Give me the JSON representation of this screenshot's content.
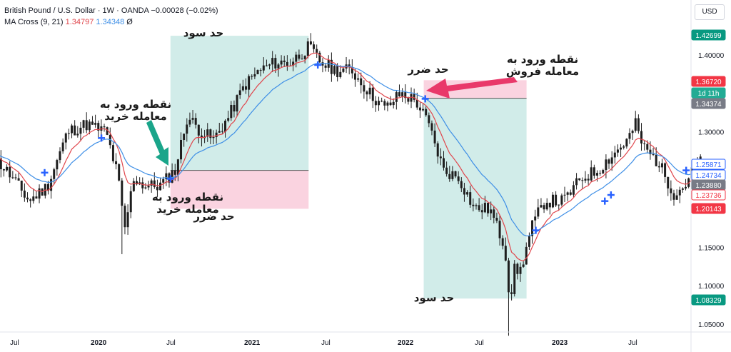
{
  "header": {
    "symbol": "British Pound / U.S. Dollar · 1W · OANDA",
    "change": "−0.00028 (−0.02%)",
    "indicator_name": "MA Cross (9, 21)",
    "ma_fast_value": "1.34797",
    "ma_slow_value": "1.34348",
    "visibility_icon": "Ø"
  },
  "currency_button": "USD",
  "colors": {
    "fast_ma": "#e0454b",
    "slow_ma": "#3d8ee6",
    "bull": "#26a69a",
    "bear": "#ef5350",
    "tp_zone": "#b2dfdb",
    "sl_zone": "#f8bbd0",
    "arrow_green": "#1aa58a",
    "arrow_red": "#e9386a",
    "cross_marker": "#2962ff"
  },
  "annotations": {
    "buy_tp_label": "حد سود",
    "buy_entry_upper": "نقطه ورود به\nمعامله خرید",
    "buy_entry_lower": "نقطه ورود به\nمعامله خرید",
    "buy_sl_label": "حد ضرر",
    "sell_entry": "نقطه ورود به\nمعامله فروش",
    "sell_sl_label": "حد ضرر",
    "sell_tp_label": "حد سود"
  },
  "chart_data": {
    "type": "candlestick",
    "x_tick_labels": [
      "Jul",
      "2020",
      "Jul",
      "2021",
      "Jul",
      "2022",
      "Jul",
      "2023",
      "Jul"
    ],
    "y_tick_labels": [
      "1.05000",
      "1.10000",
      "1.15000",
      "1.30000",
      "1.40000"
    ],
    "ylim": [
      1.033,
      1.445
    ],
    "price_badges": [
      {
        "value": "1.42699",
        "color": "#089981"
      },
      {
        "value": "1.36720",
        "color": "#f23645"
      },
      {
        "value": "1d 11h",
        "color": "#22ab94"
      },
      {
        "value": "1.34374",
        "color": "#787b86"
      },
      {
        "value": "1.25871",
        "color": "#2962ff",
        "outline": true
      },
      {
        "value": "1.24734",
        "color": "#2962ff",
        "outline": true
      },
      {
        "value": "1.23880",
        "color": "#787b86"
      },
      {
        "value": "1.23736",
        "color": "#f23645",
        "outline": true
      },
      {
        "value": "1.20143",
        "color": "#f23645"
      },
      {
        "value": "1.08329",
        "color": "#089981"
      }
    ],
    "price_path": [
      [
        2019.35,
        1.27
      ],
      [
        2019.45,
        1.25
      ],
      [
        2019.6,
        1.21
      ],
      [
        2019.72,
        1.23
      ],
      [
        2019.85,
        1.3
      ],
      [
        2019.97,
        1.31
      ],
      [
        2020.1,
        1.3
      ],
      [
        2020.18,
        1.24
      ],
      [
        2020.22,
        1.17
      ],
      [
        2020.28,
        1.24
      ],
      [
        2020.35,
        1.23
      ],
      [
        2020.45,
        1.23
      ],
      [
        2020.55,
        1.25
      ],
      [
        2020.63,
        1.32
      ],
      [
        2020.72,
        1.3
      ],
      [
        2020.8,
        1.29
      ],
      [
        2020.9,
        1.32
      ],
      [
        2021.0,
        1.36
      ],
      [
        2021.1,
        1.38
      ],
      [
        2021.2,
        1.39
      ],
      [
        2021.3,
        1.39
      ],
      [
        2021.42,
        1.41
      ],
      [
        2021.5,
        1.39
      ],
      [
        2021.6,
        1.38
      ],
      [
        2021.7,
        1.38
      ],
      [
        2021.82,
        1.35
      ],
      [
        2021.92,
        1.33
      ],
      [
        2022.02,
        1.35
      ],
      [
        2022.12,
        1.34
      ],
      [
        2022.2,
        1.31
      ],
      [
        2022.3,
        1.25
      ],
      [
        2022.4,
        1.24
      ],
      [
        2022.5,
        1.2
      ],
      [
        2022.6,
        1.2
      ],
      [
        2022.7,
        1.15
      ],
      [
        2022.73,
        1.08
      ],
      [
        2022.76,
        1.12
      ],
      [
        2022.8,
        1.12
      ],
      [
        2022.88,
        1.18
      ],
      [
        2022.96,
        1.21
      ],
      [
        2023.08,
        1.21
      ],
      [
        2023.2,
        1.24
      ],
      [
        2023.3,
        1.25
      ],
      [
        2023.4,
        1.27
      ],
      [
        2023.5,
        1.29
      ],
      [
        2023.55,
        1.31
      ],
      [
        2023.6,
        1.28
      ],
      [
        2023.7,
        1.26
      ],
      [
        2023.8,
        1.22
      ],
      [
        2023.87,
        1.23
      ],
      [
        2023.95,
        1.26
      ]
    ],
    "zones": [
      {
        "kind": "take-profit",
        "x": [
          2020.52,
          2021.42
        ],
        "y": [
          1.2499,
          1.425
        ]
      },
      {
        "kind": "stop-loss",
        "x": [
          2020.52,
          2021.42
        ],
        "y": [
          1.2,
          1.2499
        ]
      },
      {
        "kind": "stop-loss",
        "x": [
          2022.17,
          2022.84
        ],
        "y": [
          1.3437,
          1.3672
        ]
      },
      {
        "kind": "take-profit",
        "x": [
          2022.17,
          2022.84
        ],
        "y": [
          1.0833,
          1.3437
        ]
      }
    ],
    "cross_markers": [
      [
        2019.7,
        1.247
      ],
      [
        2020.07,
        1.292
      ],
      [
        2020.52,
        1.239
      ],
      [
        2021.48,
        1.387
      ],
      [
        2022.18,
        1.343
      ],
      [
        2022.9,
        1.172
      ],
      [
        2023.35,
        1.21
      ],
      [
        2023.39,
        1.218
      ],
      [
        2023.88,
        1.25
      ]
    ],
    "grid": false,
    "legend_position": "top-left"
  }
}
